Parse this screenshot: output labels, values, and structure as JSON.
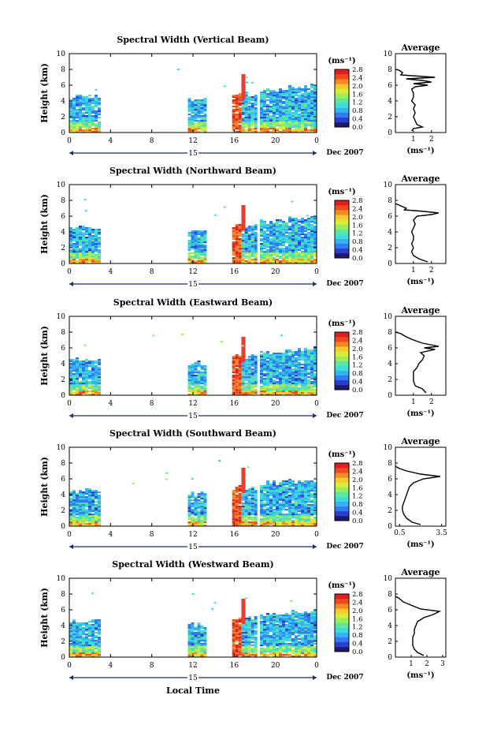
{
  "figure": {
    "common_xlabel": "Local Time",
    "avg_title": "Average",
    "avg_xlabel": "(ms⁻¹)",
    "colorbar_unit": "(ms⁻¹)",
    "colorbar_ticks": [
      "0.0",
      "0.4",
      "0.8",
      "1.2",
      "1.6",
      "2.0",
      "2.4",
      "2.8"
    ],
    "colorbar_colors": [
      "#1a1a6e",
      "#2a3fd0",
      "#2f7bf0",
      "#33b3f5",
      "#3fdbd8",
      "#5de6a0",
      "#9aee5a",
      "#d8ec3a",
      "#f7c92e",
      "#f48a23",
      "#ee4a1f",
      "#e01e1e"
    ],
    "date_label": "Dec 2007",
    "day_label": "15",
    "colors": {
      "axis": "#000000",
      "day_bar": "#1c2d6e",
      "tall_red": "#ee3b2b"
    }
  },
  "chart_data": [
    {
      "type": "heatmap",
      "title": "Spectral Width (Vertical Beam)",
      "ylabel": "Height (km)",
      "xlim": [
        0,
        24
      ],
      "ylim": [
        0,
        10
      ],
      "xticks": [
        "0",
        "4",
        "8",
        "12",
        "16",
        "20",
        "0"
      ],
      "yticks": [
        "0",
        "2",
        "4",
        "6",
        "8",
        "10"
      ],
      "colorbar_range": [
        0,
        2.8
      ],
      "data_blocks_hours": [
        [
          0,
          3.0
        ],
        [
          11.5,
          13.3
        ],
        [
          15.8,
          18.1
        ],
        [
          18.5,
          24
        ]
      ],
      "average_profile": {
        "xlim": [
          0,
          2.8
        ],
        "xticks": [
          "1",
          "2"
        ],
        "yticks": [
          "0",
          "2",
          "4",
          "6",
          "8",
          "10"
        ],
        "points": [
          [
            0.9,
            0.2
          ],
          [
            1.0,
            0.5
          ],
          [
            1.5,
            0.7
          ],
          [
            1.2,
            1.0
          ],
          [
            1.1,
            1.5
          ],
          [
            1.0,
            2.0
          ],
          [
            1.1,
            2.5
          ],
          [
            1.0,
            3.0
          ],
          [
            1.1,
            3.5
          ],
          [
            0.9,
            4.0
          ],
          [
            1.0,
            4.5
          ],
          [
            1.0,
            5.0
          ],
          [
            0.9,
            5.5
          ],
          [
            1.1,
            5.8
          ],
          [
            1.8,
            6.0
          ],
          [
            1.0,
            6.2
          ],
          [
            2.0,
            6.4
          ],
          [
            1.5,
            6.6
          ],
          [
            0.6,
            6.8
          ],
          [
            2.2,
            7.0
          ],
          [
            0.3,
            7.3
          ],
          [
            0.4,
            7.6
          ],
          [
            0.2,
            7.9
          ],
          [
            0.0,
            8.0
          ]
        ]
      }
    },
    {
      "type": "heatmap",
      "title": "Spectral Width (Northward Beam)",
      "ylabel": "Height (km)",
      "xlim": [
        0,
        24
      ],
      "ylim": [
        0,
        10
      ],
      "xticks": [
        "0",
        "4",
        "8",
        "12",
        "16",
        "20",
        "0"
      ],
      "yticks": [
        "0",
        "2",
        "4",
        "6",
        "8",
        "10"
      ],
      "colorbar_range": [
        0,
        2.8
      ],
      "data_blocks_hours": [
        [
          0,
          3.0
        ],
        [
          11.5,
          13.3
        ],
        [
          15.8,
          18.1
        ],
        [
          18.5,
          24
        ]
      ],
      "average_profile": {
        "xlim": [
          0,
          2.8
        ],
        "xticks": [
          "1",
          "2"
        ],
        "yticks": [
          "0",
          "2",
          "4",
          "6",
          "8",
          "10"
        ],
        "points": [
          [
            1.8,
            0.2
          ],
          [
            1.3,
            0.6
          ],
          [
            1.0,
            1.0
          ],
          [
            0.9,
            1.5
          ],
          [
            1.0,
            2.0
          ],
          [
            0.9,
            2.5
          ],
          [
            1.0,
            3.0
          ],
          [
            1.0,
            3.5
          ],
          [
            0.9,
            4.0
          ],
          [
            1.0,
            4.5
          ],
          [
            1.1,
            5.0
          ],
          [
            1.0,
            5.5
          ],
          [
            1.2,
            6.0
          ],
          [
            2.0,
            6.2
          ],
          [
            2.4,
            6.4
          ],
          [
            1.6,
            6.6
          ],
          [
            0.5,
            6.8
          ],
          [
            0.6,
            7.0
          ],
          [
            0.2,
            7.4
          ],
          [
            0.0,
            7.6
          ]
        ]
      }
    },
    {
      "type": "heatmap",
      "title": "Spectral Width (Eastward Beam)",
      "ylabel": "Height (km)",
      "xlim": [
        0,
        24
      ],
      "ylim": [
        0,
        10
      ],
      "xticks": [
        "0",
        "4",
        "8",
        "12",
        "16",
        "20",
        "0"
      ],
      "yticks": [
        "0",
        "2",
        "4",
        "6",
        "8",
        "10"
      ],
      "colorbar_range": [
        0,
        2.8
      ],
      "data_blocks_hours": [
        [
          0,
          3.0
        ],
        [
          11.5,
          13.3
        ],
        [
          15.8,
          18.1
        ],
        [
          18.5,
          24
        ]
      ],
      "average_profile": {
        "xlim": [
          0,
          2.8
        ],
        "xticks": [
          "1",
          "2"
        ],
        "yticks": [
          "0",
          "2",
          "4",
          "6",
          "8",
          "10"
        ],
        "points": [
          [
            1.7,
            0.3
          ],
          [
            1.5,
            0.8
          ],
          [
            1.1,
            1.2
          ],
          [
            1.0,
            1.8
          ],
          [
            1.0,
            2.4
          ],
          [
            1.0,
            3.0
          ],
          [
            1.2,
            3.5
          ],
          [
            1.3,
            4.0
          ],
          [
            1.5,
            4.5
          ],
          [
            1.6,
            5.0
          ],
          [
            1.4,
            5.4
          ],
          [
            2.2,
            5.8
          ],
          [
            1.6,
            6.0
          ],
          [
            2.4,
            6.2
          ],
          [
            1.5,
            6.6
          ],
          [
            1.0,
            7.0
          ],
          [
            0.6,
            7.4
          ],
          [
            0.3,
            7.8
          ],
          [
            0.0,
            8.0
          ]
        ]
      }
    },
    {
      "type": "heatmap",
      "title": "Spectral Width (Southward Beam)",
      "ylabel": "Height (km)",
      "xlim": [
        0,
        24
      ],
      "ylim": [
        0,
        10
      ],
      "xticks": [
        "0",
        "4",
        "8",
        "12",
        "16",
        "20",
        "0"
      ],
      "yticks": [
        "0",
        "2",
        "4",
        "6",
        "8",
        "10"
      ],
      "colorbar_range": [
        0,
        2.8
      ],
      "data_blocks_hours": [
        [
          0,
          3.0
        ],
        [
          11.5,
          13.3
        ],
        [
          15.8,
          18.1
        ],
        [
          18.5,
          24
        ]
      ],
      "average_profile": {
        "xlim": [
          0.2,
          3.8
        ],
        "xticks": [
          "0.5",
          "3.5"
        ],
        "yticks": [
          "0",
          "2",
          "4",
          "6",
          "8",
          "10"
        ],
        "points": [
          [
            2.0,
            0.2
          ],
          [
            1.4,
            0.5
          ],
          [
            1.0,
            1.0
          ],
          [
            0.8,
            1.5
          ],
          [
            0.7,
            2.0
          ],
          [
            0.7,
            2.5
          ],
          [
            0.8,
            3.0
          ],
          [
            0.9,
            3.5
          ],
          [
            1.0,
            4.0
          ],
          [
            1.1,
            4.5
          ],
          [
            1.2,
            5.0
          ],
          [
            1.5,
            5.5
          ],
          [
            2.2,
            6.0
          ],
          [
            3.4,
            6.3
          ],
          [
            2.0,
            6.6
          ],
          [
            1.0,
            7.0
          ],
          [
            0.5,
            7.3
          ],
          [
            0.2,
            7.6
          ]
        ]
      }
    },
    {
      "type": "heatmap",
      "title": "Spectral Width (Westward Beam)",
      "ylabel": "Height (km)",
      "xlim": [
        0,
        24
      ],
      "ylim": [
        0,
        10
      ],
      "xticks": [
        "0",
        "4",
        "8",
        "12",
        "16",
        "20",
        "0"
      ],
      "yticks": [
        "0",
        "2",
        "4",
        "6",
        "8",
        "10"
      ],
      "colorbar_range": [
        0,
        2.8
      ],
      "data_blocks_hours": [
        [
          0,
          3.0
        ],
        [
          11.5,
          13.3
        ],
        [
          15.8,
          18.1
        ],
        [
          18.5,
          24
        ]
      ],
      "average_profile": {
        "xlim": [
          0,
          3.2
        ],
        "xticks": [
          "1",
          "2",
          "3"
        ],
        "yticks": [
          "0",
          "2",
          "4",
          "6",
          "8",
          "10"
        ],
        "points": [
          [
            1.8,
            0.2
          ],
          [
            1.4,
            0.6
          ],
          [
            1.2,
            1.0
          ],
          [
            1.1,
            1.5
          ],
          [
            1.1,
            2.0
          ],
          [
            1.1,
            2.5
          ],
          [
            1.2,
            3.0
          ],
          [
            1.2,
            3.5
          ],
          [
            1.3,
            4.0
          ],
          [
            1.4,
            4.5
          ],
          [
            1.8,
            5.0
          ],
          [
            2.4,
            5.4
          ],
          [
            2.8,
            5.8
          ],
          [
            1.6,
            6.1
          ],
          [
            1.1,
            6.5
          ],
          [
            0.5,
            7.0
          ],
          [
            0.2,
            7.5
          ],
          [
            0.0,
            7.7
          ]
        ]
      }
    }
  ]
}
